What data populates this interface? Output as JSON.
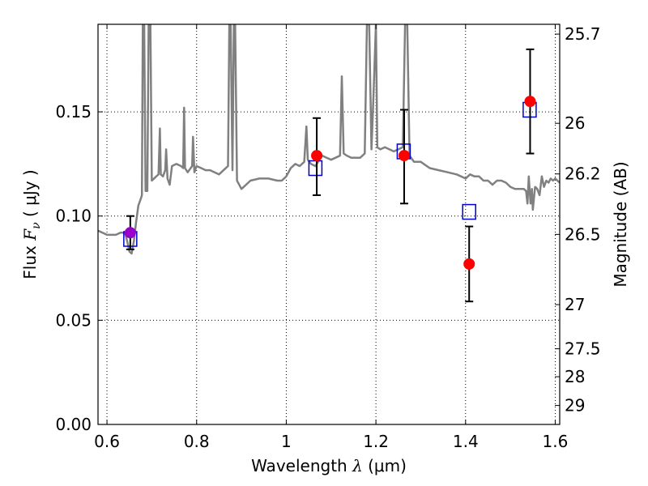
{
  "chart_data": {
    "type": "scatter",
    "title": "",
    "xlabel": {
      "prefix": "Wavelength  ",
      "symbol": "λ",
      "unit": " (μm)"
    },
    "ylabel": {
      "prefix": "Flux  ",
      "symbol": "F",
      "subscript": "ν",
      "unit": "  ( μJy )"
    },
    "ylabel_right": "Magnitude (AB)",
    "xlim": [
      0.58,
      1.61
    ],
    "ylim": [
      0.0,
      0.192
    ],
    "x_ticks": [
      {
        "value": 0.6,
        "label": "0.6"
      },
      {
        "value": 0.8,
        "label": "0.8"
      },
      {
        "value": 1.0,
        "label": "1"
      },
      {
        "value": 1.2,
        "label": "1.2"
      },
      {
        "value": 1.4,
        "label": "1.4"
      },
      {
        "value": 1.6,
        "label": "1.6"
      }
    ],
    "y_ticks": [
      {
        "value": 0.0,
        "label": "0.00"
      },
      {
        "value": 0.05,
        "label": "0.05"
      },
      {
        "value": 0.1,
        "label": "0.10"
      },
      {
        "value": 0.15,
        "label": "0.15"
      }
    ],
    "right_ticks": [
      {
        "flux": 0.1873,
        "label": "25.7"
      },
      {
        "flux": 0.1445,
        "label": "26"
      },
      {
        "flux": 0.1202,
        "label": "26.2"
      },
      {
        "flux": 0.0912,
        "label": "26.5"
      },
      {
        "flux": 0.0575,
        "label": "27"
      },
      {
        "flux": 0.0363,
        "label": "27.5"
      },
      {
        "flux": 0.0229,
        "label": "28"
      },
      {
        "flux": 0.0091,
        "label": "29"
      }
    ],
    "grid": true,
    "series": [
      {
        "kind": "line",
        "color": "#808080",
        "points": [
          [
            0.58,
            0.093
          ],
          [
            0.59,
            0.092
          ],
          [
            0.6,
            0.091
          ],
          [
            0.62,
            0.091
          ],
          [
            0.63,
            0.092
          ],
          [
            0.64,
            0.092
          ],
          [
            0.645,
            0.088
          ],
          [
            0.65,
            0.083
          ],
          [
            0.655,
            0.082
          ],
          [
            0.66,
            0.088
          ],
          [
            0.665,
            0.097
          ],
          [
            0.67,
            0.105
          ],
          [
            0.675,
            0.108
          ],
          [
            0.678,
            0.11
          ],
          [
            0.68,
            0.192
          ],
          [
            0.683,
            0.192
          ],
          [
            0.686,
            0.112
          ],
          [
            0.69,
            0.112
          ],
          [
            0.693,
            0.192
          ],
          [
            0.697,
            0.192
          ],
          [
            0.7,
            0.117
          ],
          [
            0.705,
            0.118
          ],
          [
            0.71,
            0.119
          ],
          [
            0.715,
            0.12
          ],
          [
            0.718,
            0.142
          ],
          [
            0.72,
            0.12
          ],
          [
            0.725,
            0.119
          ],
          [
            0.73,
            0.122
          ],
          [
            0.732,
            0.132
          ],
          [
            0.735,
            0.118
          ],
          [
            0.74,
            0.115
          ],
          [
            0.745,
            0.124
          ],
          [
            0.755,
            0.125
          ],
          [
            0.765,
            0.124
          ],
          [
            0.77,
            0.123
          ],
          [
            0.772,
            0.152
          ],
          [
            0.774,
            0.123
          ],
          [
            0.78,
            0.121
          ],
          [
            0.79,
            0.124
          ],
          [
            0.792,
            0.138
          ],
          [
            0.795,
            0.121
          ],
          [
            0.8,
            0.124
          ],
          [
            0.81,
            0.123
          ],
          [
            0.82,
            0.122
          ],
          [
            0.83,
            0.122
          ],
          [
            0.84,
            0.121
          ],
          [
            0.85,
            0.12
          ],
          [
            0.86,
            0.122
          ],
          [
            0.87,
            0.124
          ],
          [
            0.873,
            0.192
          ],
          [
            0.876,
            0.192
          ],
          [
            0.88,
            0.122
          ],
          [
            0.883,
            0.192
          ],
          [
            0.886,
            0.192
          ],
          [
            0.89,
            0.117
          ],
          [
            0.895,
            0.115
          ],
          [
            0.9,
            0.113
          ],
          [
            0.92,
            0.117
          ],
          [
            0.94,
            0.118
          ],
          [
            0.96,
            0.118
          ],
          [
            0.98,
            0.117
          ],
          [
            0.99,
            0.117
          ],
          [
            1.0,
            0.119
          ],
          [
            1.01,
            0.123
          ],
          [
            1.02,
            0.125
          ],
          [
            1.03,
            0.124
          ],
          [
            1.04,
            0.126
          ],
          [
            1.045,
            0.143
          ],
          [
            1.048,
            0.127
          ],
          [
            1.055,
            0.125
          ],
          [
            1.065,
            0.124
          ],
          [
            1.08,
            0.129
          ],
          [
            1.09,
            0.128
          ],
          [
            1.1,
            0.127
          ],
          [
            1.11,
            0.128
          ],
          [
            1.12,
            0.129
          ],
          [
            1.124,
            0.167
          ],
          [
            1.128,
            0.13
          ],
          [
            1.135,
            0.129
          ],
          [
            1.145,
            0.128
          ],
          [
            1.155,
            0.128
          ],
          [
            1.165,
            0.128
          ],
          [
            1.175,
            0.13
          ],
          [
            1.18,
            0.192
          ],
          [
            1.185,
            0.192
          ],
          [
            1.19,
            0.132
          ],
          [
            1.195,
            0.16
          ],
          [
            1.2,
            0.192
          ],
          [
            1.203,
            0.133
          ],
          [
            1.21,
            0.132
          ],
          [
            1.22,
            0.133
          ],
          [
            1.23,
            0.132
          ],
          [
            1.24,
            0.131
          ],
          [
            1.25,
            0.132
          ],
          [
            1.26,
            0.133
          ],
          [
            1.265,
            0.192
          ],
          [
            1.27,
            0.192
          ],
          [
            1.275,
            0.129
          ],
          [
            1.285,
            0.126
          ],
          [
            1.3,
            0.126
          ],
          [
            1.32,
            0.123
          ],
          [
            1.34,
            0.122
          ],
          [
            1.36,
            0.121
          ],
          [
            1.38,
            0.12
          ],
          [
            1.39,
            0.119
          ],
          [
            1.4,
            0.118
          ],
          [
            1.41,
            0.12
          ],
          [
            1.42,
            0.119
          ],
          [
            1.43,
            0.119
          ],
          [
            1.44,
            0.117
          ],
          [
            1.45,
            0.117
          ],
          [
            1.46,
            0.115
          ],
          [
            1.47,
            0.117
          ],
          [
            1.48,
            0.117
          ],
          [
            1.49,
            0.116
          ],
          [
            1.5,
            0.114
          ],
          [
            1.51,
            0.113
          ],
          [
            1.52,
            0.113
          ],
          [
            1.53,
            0.113
          ],
          [
            1.535,
            0.112
          ],
          [
            1.538,
            0.106
          ],
          [
            1.541,
            0.119
          ],
          [
            1.545,
            0.106
          ],
          [
            1.548,
            0.113
          ],
          [
            1.55,
            0.103
          ],
          [
            1.555,
            0.114
          ],
          [
            1.56,
            0.113
          ],
          [
            1.565,
            0.11
          ],
          [
            1.57,
            0.119
          ],
          [
            1.575,
            0.114
          ],
          [
            1.58,
            0.117
          ],
          [
            1.585,
            0.116
          ],
          [
            1.59,
            0.118
          ],
          [
            1.595,
            0.117
          ],
          [
            1.6,
            0.118
          ],
          [
            1.605,
            0.117
          ],
          [
            1.61,
            0.116
          ]
        ]
      },
      {
        "kind": "squares",
        "color": "#0000cc",
        "points": [
          [
            0.652,
            0.089
          ],
          [
            1.065,
            0.123
          ],
          [
            1.262,
            0.131
          ],
          [
            1.408,
            0.102
          ],
          [
            1.543,
            0.151
          ]
        ]
      },
      {
        "kind": "points_with_errors",
        "color": "#ff0000",
        "points": [
          {
            "x": 1.068,
            "y": 0.129,
            "yerr": [
              0.11,
              0.147
            ]
          },
          {
            "x": 1.263,
            "y": 0.129,
            "yerr": [
              0.106,
              0.151
            ]
          },
          {
            "x": 1.408,
            "y": 0.077,
            "yerr": [
              0.059,
              0.095
            ]
          },
          {
            "x": 1.544,
            "y": 0.155,
            "yerr": [
              0.13,
              0.18
            ]
          }
        ]
      },
      {
        "kind": "points_with_errors",
        "color": "#9900cc",
        "points": [
          {
            "x": 0.652,
            "y": 0.092,
            "yerr": [
              0.084,
              0.1
            ]
          }
        ]
      }
    ]
  }
}
